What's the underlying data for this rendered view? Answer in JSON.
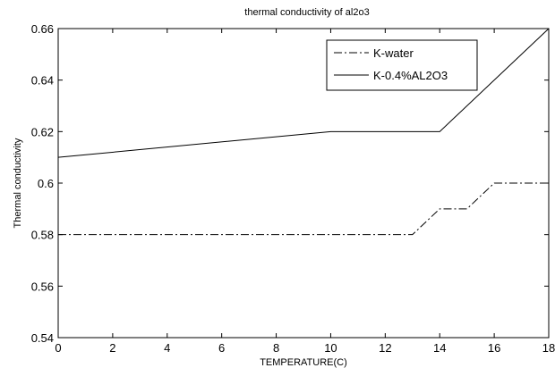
{
  "chart_data": {
    "type": "line",
    "title": "thermal conductivity of al2o3",
    "xlabel": "TEMPERATURE(C)",
    "ylabel": "Thermal conductivity",
    "xlim": [
      0,
      18
    ],
    "ylim": [
      0.54,
      0.66
    ],
    "xticks": [
      0,
      2,
      4,
      6,
      8,
      10,
      12,
      14,
      16,
      18
    ],
    "yticks": [
      0.54,
      0.56,
      0.58,
      0.6,
      0.62,
      0.64,
      0.66
    ],
    "ytick_labels": [
      "0.54",
      "0.56",
      "0.58",
      "0.6",
      "0.62",
      "0.64",
      "0.66"
    ],
    "grid": false,
    "legend_position": "top-right",
    "series": [
      {
        "name": "K-water",
        "style": "dash-dot",
        "color": "#000000",
        "x": [
          0,
          10,
          13,
          14,
          15,
          16,
          18
        ],
        "y": [
          0.58,
          0.58,
          0.58,
          0.59,
          0.59,
          0.6,
          0.6
        ]
      },
      {
        "name": "K-0.4%AL2O3",
        "style": "solid",
        "color": "#000000",
        "x": [
          0,
          10,
          14,
          18
        ],
        "y": [
          0.61,
          0.62,
          0.62,
          0.66
        ]
      }
    ]
  }
}
